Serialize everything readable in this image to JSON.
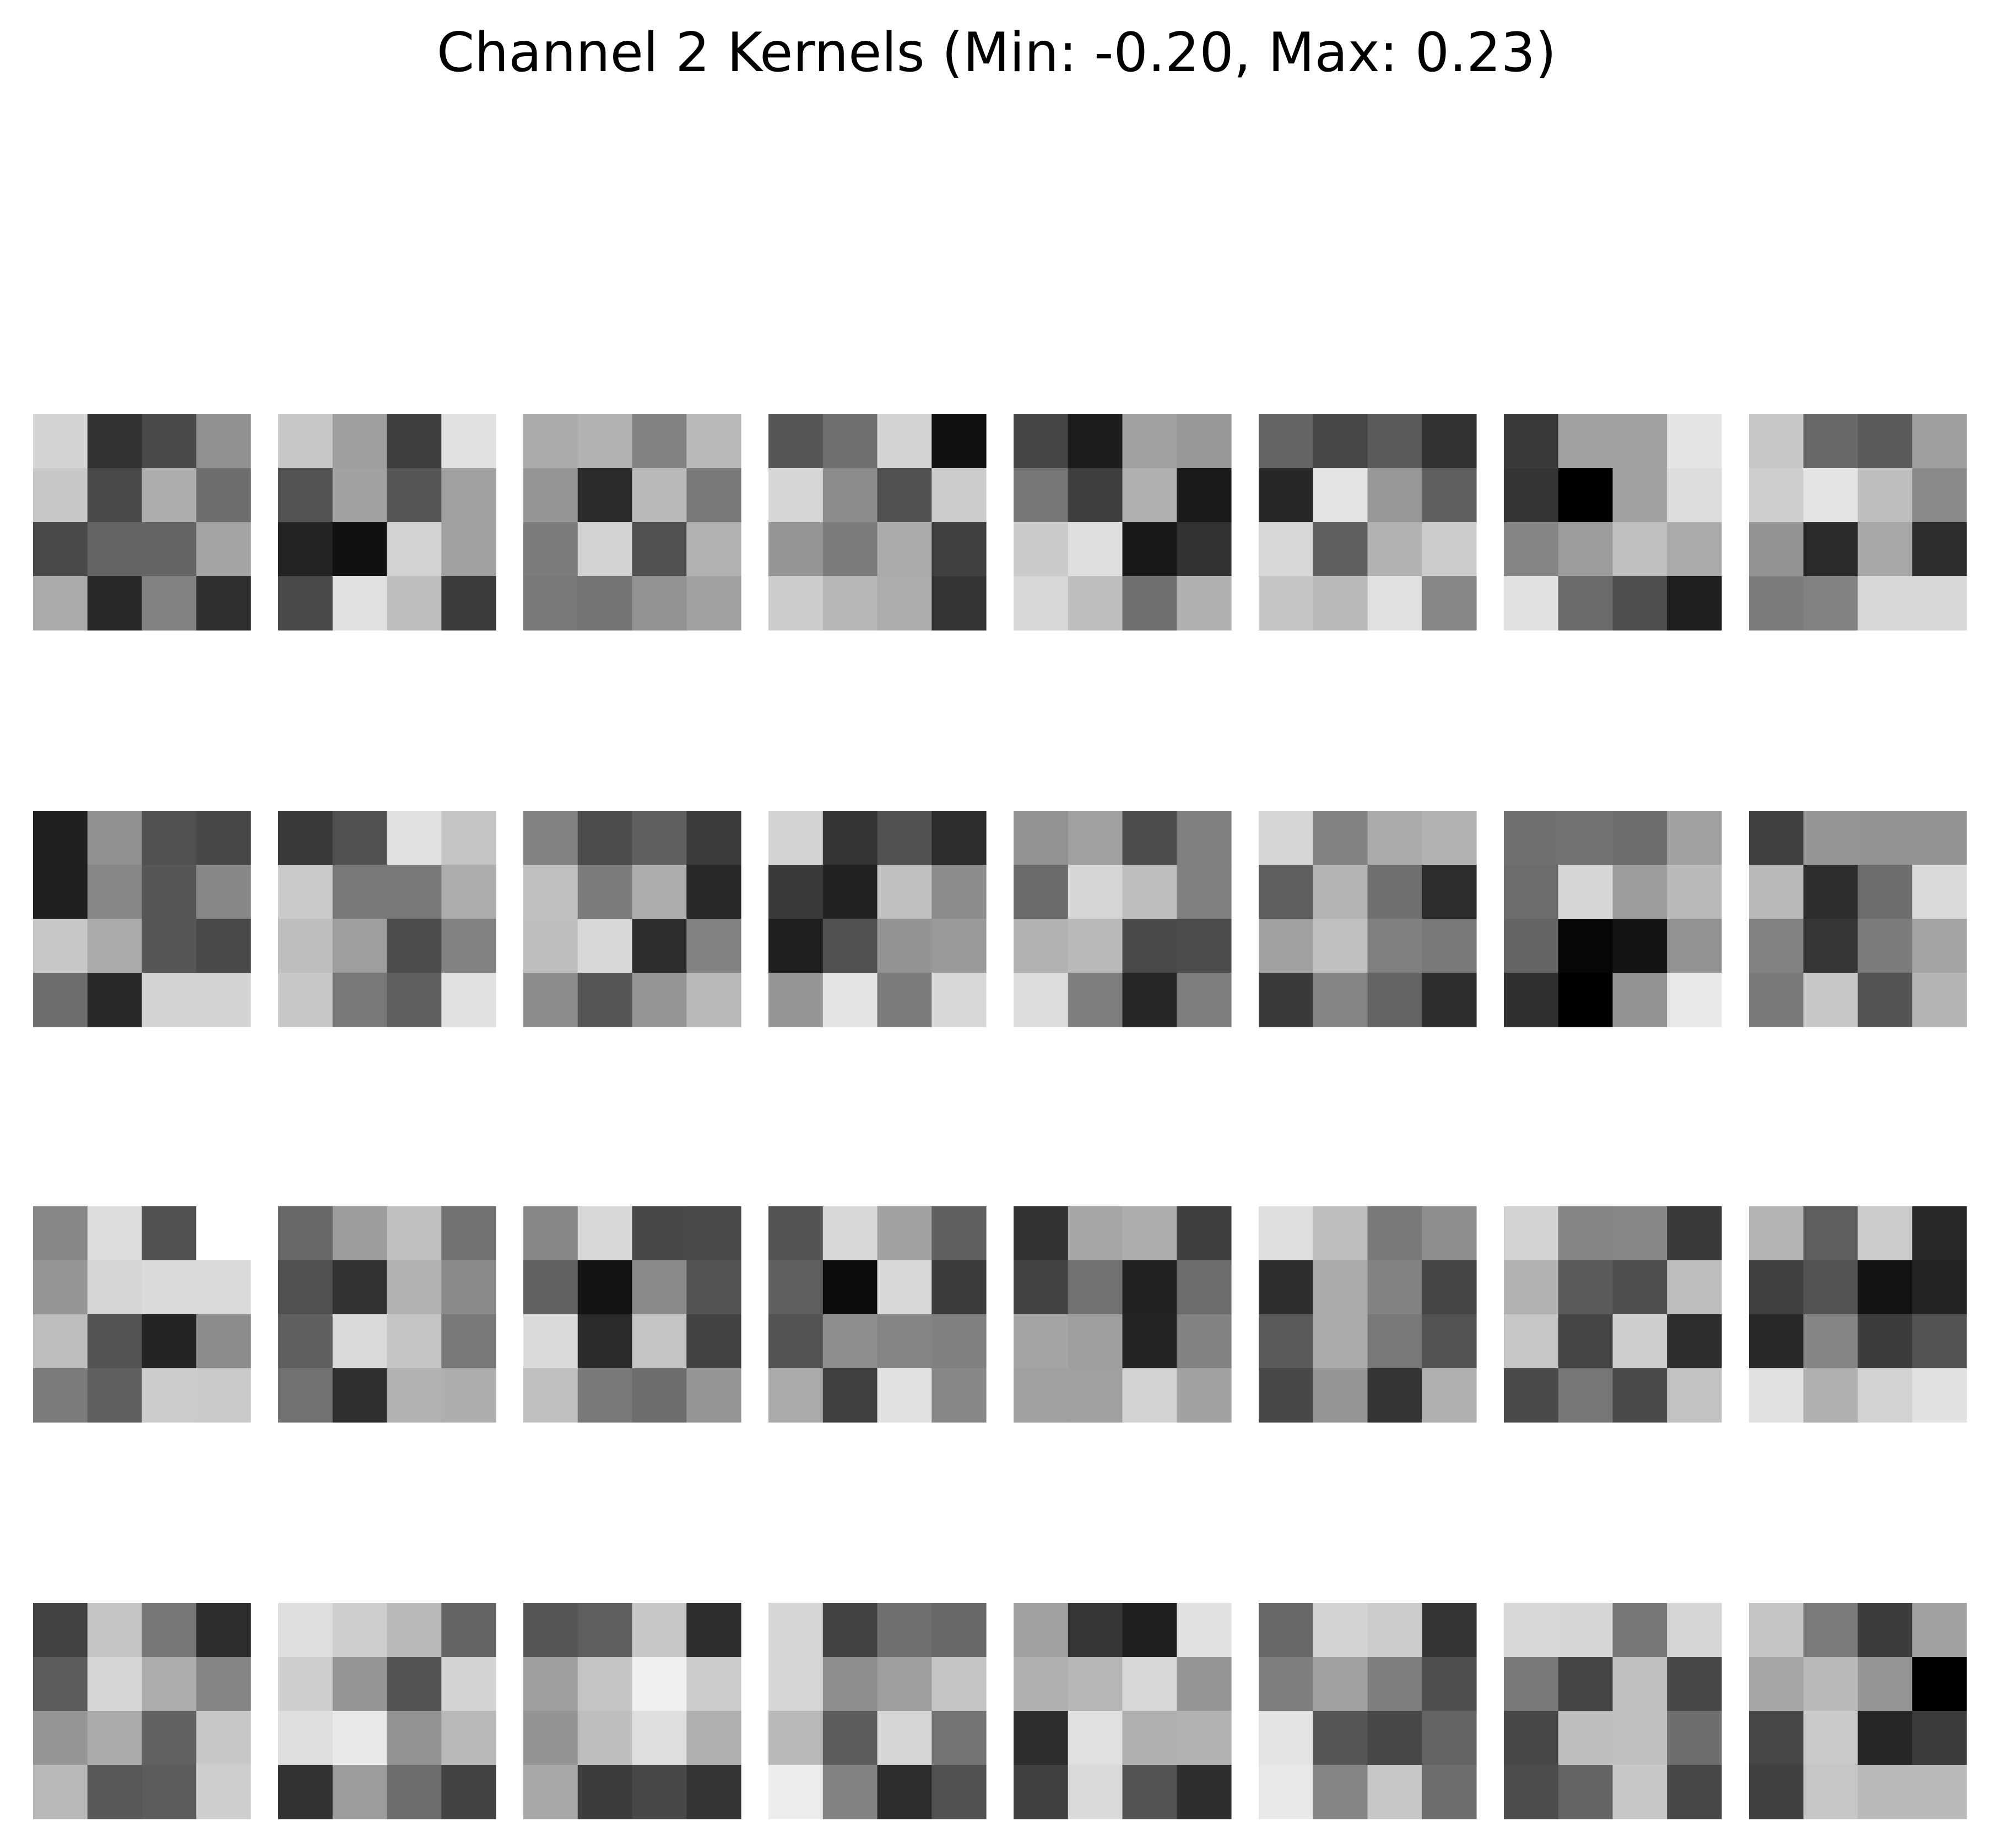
{
  "chart_data": {
    "type": "heatmap",
    "title": "Channel 2 Kernels (Min: -0.20, Max: 0.23)",
    "colormap": "gray",
    "grid": false,
    "axes": false,
    "kernel_grid": {
      "rows": 4,
      "cols": 8
    },
    "kernel_size": {
      "rows": 4,
      "cols": 4
    },
    "kernels": [
      [
        [
          212,
          49,
          74,
          144
        ],
        [
          200,
          73,
          174,
          110
        ],
        [
          73,
          100,
          100,
          164
        ],
        [
          170,
          41,
          130,
          48
        ]
      ],
      [
        [
          200,
          158,
          61,
          224
        ],
        [
          82,
          162,
          86,
          160
        ],
        [
          35,
          17,
          210,
          160
        ],
        [
          74,
          224,
          190,
          60
        ]
      ],
      [
        [
          170,
          178,
          130,
          186
        ],
        [
          150,
          42,
          186,
          122
        ],
        [
          124,
          210,
          80,
          178
        ],
        [
          120,
          116,
          146,
          160
        ]
      ],
      [
        [
          86,
          112,
          212,
          16
        ],
        [
          214,
          140,
          80,
          204
        ],
        [
          150,
          124,
          170,
          64
        ],
        [
          204,
          182,
          172,
          52
        ]
      ],
      [
        [
          68,
          28,
          162,
          152
        ],
        [
          118,
          62,
          176,
          26
        ],
        [
          202,
          222,
          24,
          50
        ],
        [
          216,
          190,
          112,
          176
        ]
      ],
      [
        [
          100,
          70,
          90,
          50
        ],
        [
          38,
          228,
          152,
          96
        ],
        [
          216,
          96,
          178,
          204
        ],
        [
          196,
          184,
          224,
          134
        ]
      ],
      [
        [
          58,
          162,
          160,
          228
        ],
        [
          52,
          0,
          162,
          220
        ],
        [
          132,
          156,
          192,
          170
        ],
        [
          224,
          106,
          78,
          30
        ]
      ],
      [
        [
          200,
          104,
          90,
          158
        ],
        [
          206,
          228,
          190,
          138
        ],
        [
          148,
          42,
          168,
          44
        ],
        [
          124,
          130,
          216,
          216
        ]
      ],
      [
        [
          32,
          144,
          80,
          72
        ],
        [
          32,
          134,
          86,
          136
        ],
        [
          200,
          170,
          86,
          74
        ],
        [
          110,
          40,
          212,
          212
        ]
      ],
      [
        [
          58,
          80,
          224,
          196
        ],
        [
          202,
          120,
          120,
          172
        ],
        [
          190,
          158,
          76,
          130
        ],
        [
          200,
          120,
          94,
          224
        ]
      ],
      [
        [
          130,
          76,
          96,
          60
        ],
        [
          192,
          124,
          174,
          40
        ],
        [
          190,
          216,
          46,
          130
        ],
        [
          140,
          86,
          150,
          184
        ]
      ],
      [
        [
          212,
          52,
          80,
          44
        ],
        [
          58,
          34,
          192,
          140
        ],
        [
          30,
          80,
          148,
          154
        ],
        [
          150,
          228,
          124,
          216
        ]
      ],
      [
        [
          146,
          160,
          76,
          128
        ],
        [
          106,
          214,
          190,
          128
        ],
        [
          178,
          186,
          74,
          76
        ],
        [
          220,
          126,
          38,
          126
        ]
      ],
      [
        [
          214,
          130,
          170,
          178
        ],
        [
          94,
          180,
          112,
          44
        ],
        [
          160,
          192,
          128,
          120
        ],
        [
          58,
          132,
          100,
          44
        ]
      ],
      [
        [
          112,
          114,
          110,
          160
        ],
        [
          108,
          214,
          156,
          186
        ],
        [
          100,
          6,
          20,
          146
        ],
        [
          48,
          0,
          146,
          232
        ]
      ],
      [
        [
          64,
          150,
          148,
          148
        ],
        [
          186,
          46,
          108,
          218
        ],
        [
          130,
          54,
          124,
          164
        ],
        [
          122,
          200,
          84,
          180
        ]
      ],
      [
        [
          134,
          220,
          80,
          255
        ],
        [
          150,
          214,
          218,
          218
        ],
        [
          190,
          84,
          36,
          140
        ],
        [
          124,
          96,
          204,
          202
        ]
      ],
      [
        [
          104,
          156,
          192,
          114
        ],
        [
          80,
          50,
          178,
          138
        ],
        [
          96,
          218,
          196,
          120
        ],
        [
          114,
          48,
          178,
          174
        ]
      ],
      [
        [
          136,
          216,
          72,
          74
        ],
        [
          98,
          20,
          138,
          84
        ],
        [
          218,
          42,
          196,
          66
        ],
        [
          192,
          122,
          110,
          150
        ]
      ],
      [
        [
          82,
          216,
          162,
          96
        ],
        [
          96,
          12,
          216,
          60
        ],
        [
          82,
          142,
          132,
          128
        ],
        [
          170,
          64,
          224,
          136
        ]
      ],
      [
        [
          50,
          166,
          174,
          62
        ],
        [
          66,
          114,
          34,
          108
        ],
        [
          164,
          158,
          36,
          130
        ],
        [
          160,
          160,
          210,
          162
        ]
      ],
      [
        [
          222,
          190,
          122,
          142
        ],
        [
          46,
          170,
          130,
          68
        ],
        [
          90,
          170,
          120,
          82
        ],
        [
          72,
          150,
          52,
          176
        ]
      ],
      [
        [
          210,
          132,
          136,
          56
        ],
        [
          178,
          90,
          78,
          190
        ],
        [
          198,
          68,
          206,
          44
        ],
        [
          74,
          118,
          74,
          194
        ]
      ],
      [
        [
          180,
          94,
          204,
          40
        ],
        [
          64,
          82,
          18,
          36
        ],
        [
          40,
          132,
          60,
          82
        ],
        [
          224,
          176,
          210,
          226
        ]
      ],
      [
        [
          66,
          196,
          118,
          44
        ],
        [
          92,
          214,
          172,
          132
        ],
        [
          150,
          170,
          98,
          200
        ],
        [
          184,
          88,
          92,
          206
        ]
      ],
      [
        [
          222,
          206,
          186,
          100
        ],
        [
          206,
          150,
          82,
          212
        ],
        [
          222,
          232,
          148,
          184
        ],
        [
          50,
          156,
          108,
          66
        ]
      ],
      [
        [
          86,
          94,
          200,
          46
        ],
        [
          158,
          196,
          240,
          204
        ],
        [
          148,
          190,
          222,
          176
        ],
        [
          168,
          60,
          72,
          52
        ]
      ],
      [
        [
          214,
          66,
          112,
          104
        ],
        [
          214,
          142,
          158,
          196
        ],
        [
          184,
          92,
          214,
          116
        ],
        [
          236,
          130,
          44,
          80
        ]
      ],
      [
        [
          160,
          54,
          30,
          226
        ],
        [
          176,
          182,
          216,
          150
        ],
        [
          46,
          224,
          176,
          178
        ],
        [
          64,
          218,
          84,
          46
        ]
      ],
      [
        [
          104,
          210,
          204,
          52
        ],
        [
          126,
          162,
          126,
          78
        ],
        [
          228,
          86,
          72,
          100
        ],
        [
          232,
          132,
          200,
          110
        ]
      ],
      [
        [
          216,
          214,
          118,
          214
        ],
        [
          120,
          68,
          192,
          70
        ],
        [
          70,
          190,
          192,
          110
        ],
        [
          76,
          100,
          200,
          70
        ]
      ],
      [
        [
          196,
          124,
          60,
          162
        ],
        [
          166,
          186,
          150,
          0
        ],
        [
          70,
          202,
          38,
          60
        ],
        [
          64,
          198,
          186,
          186
        ]
      ]
    ]
  }
}
